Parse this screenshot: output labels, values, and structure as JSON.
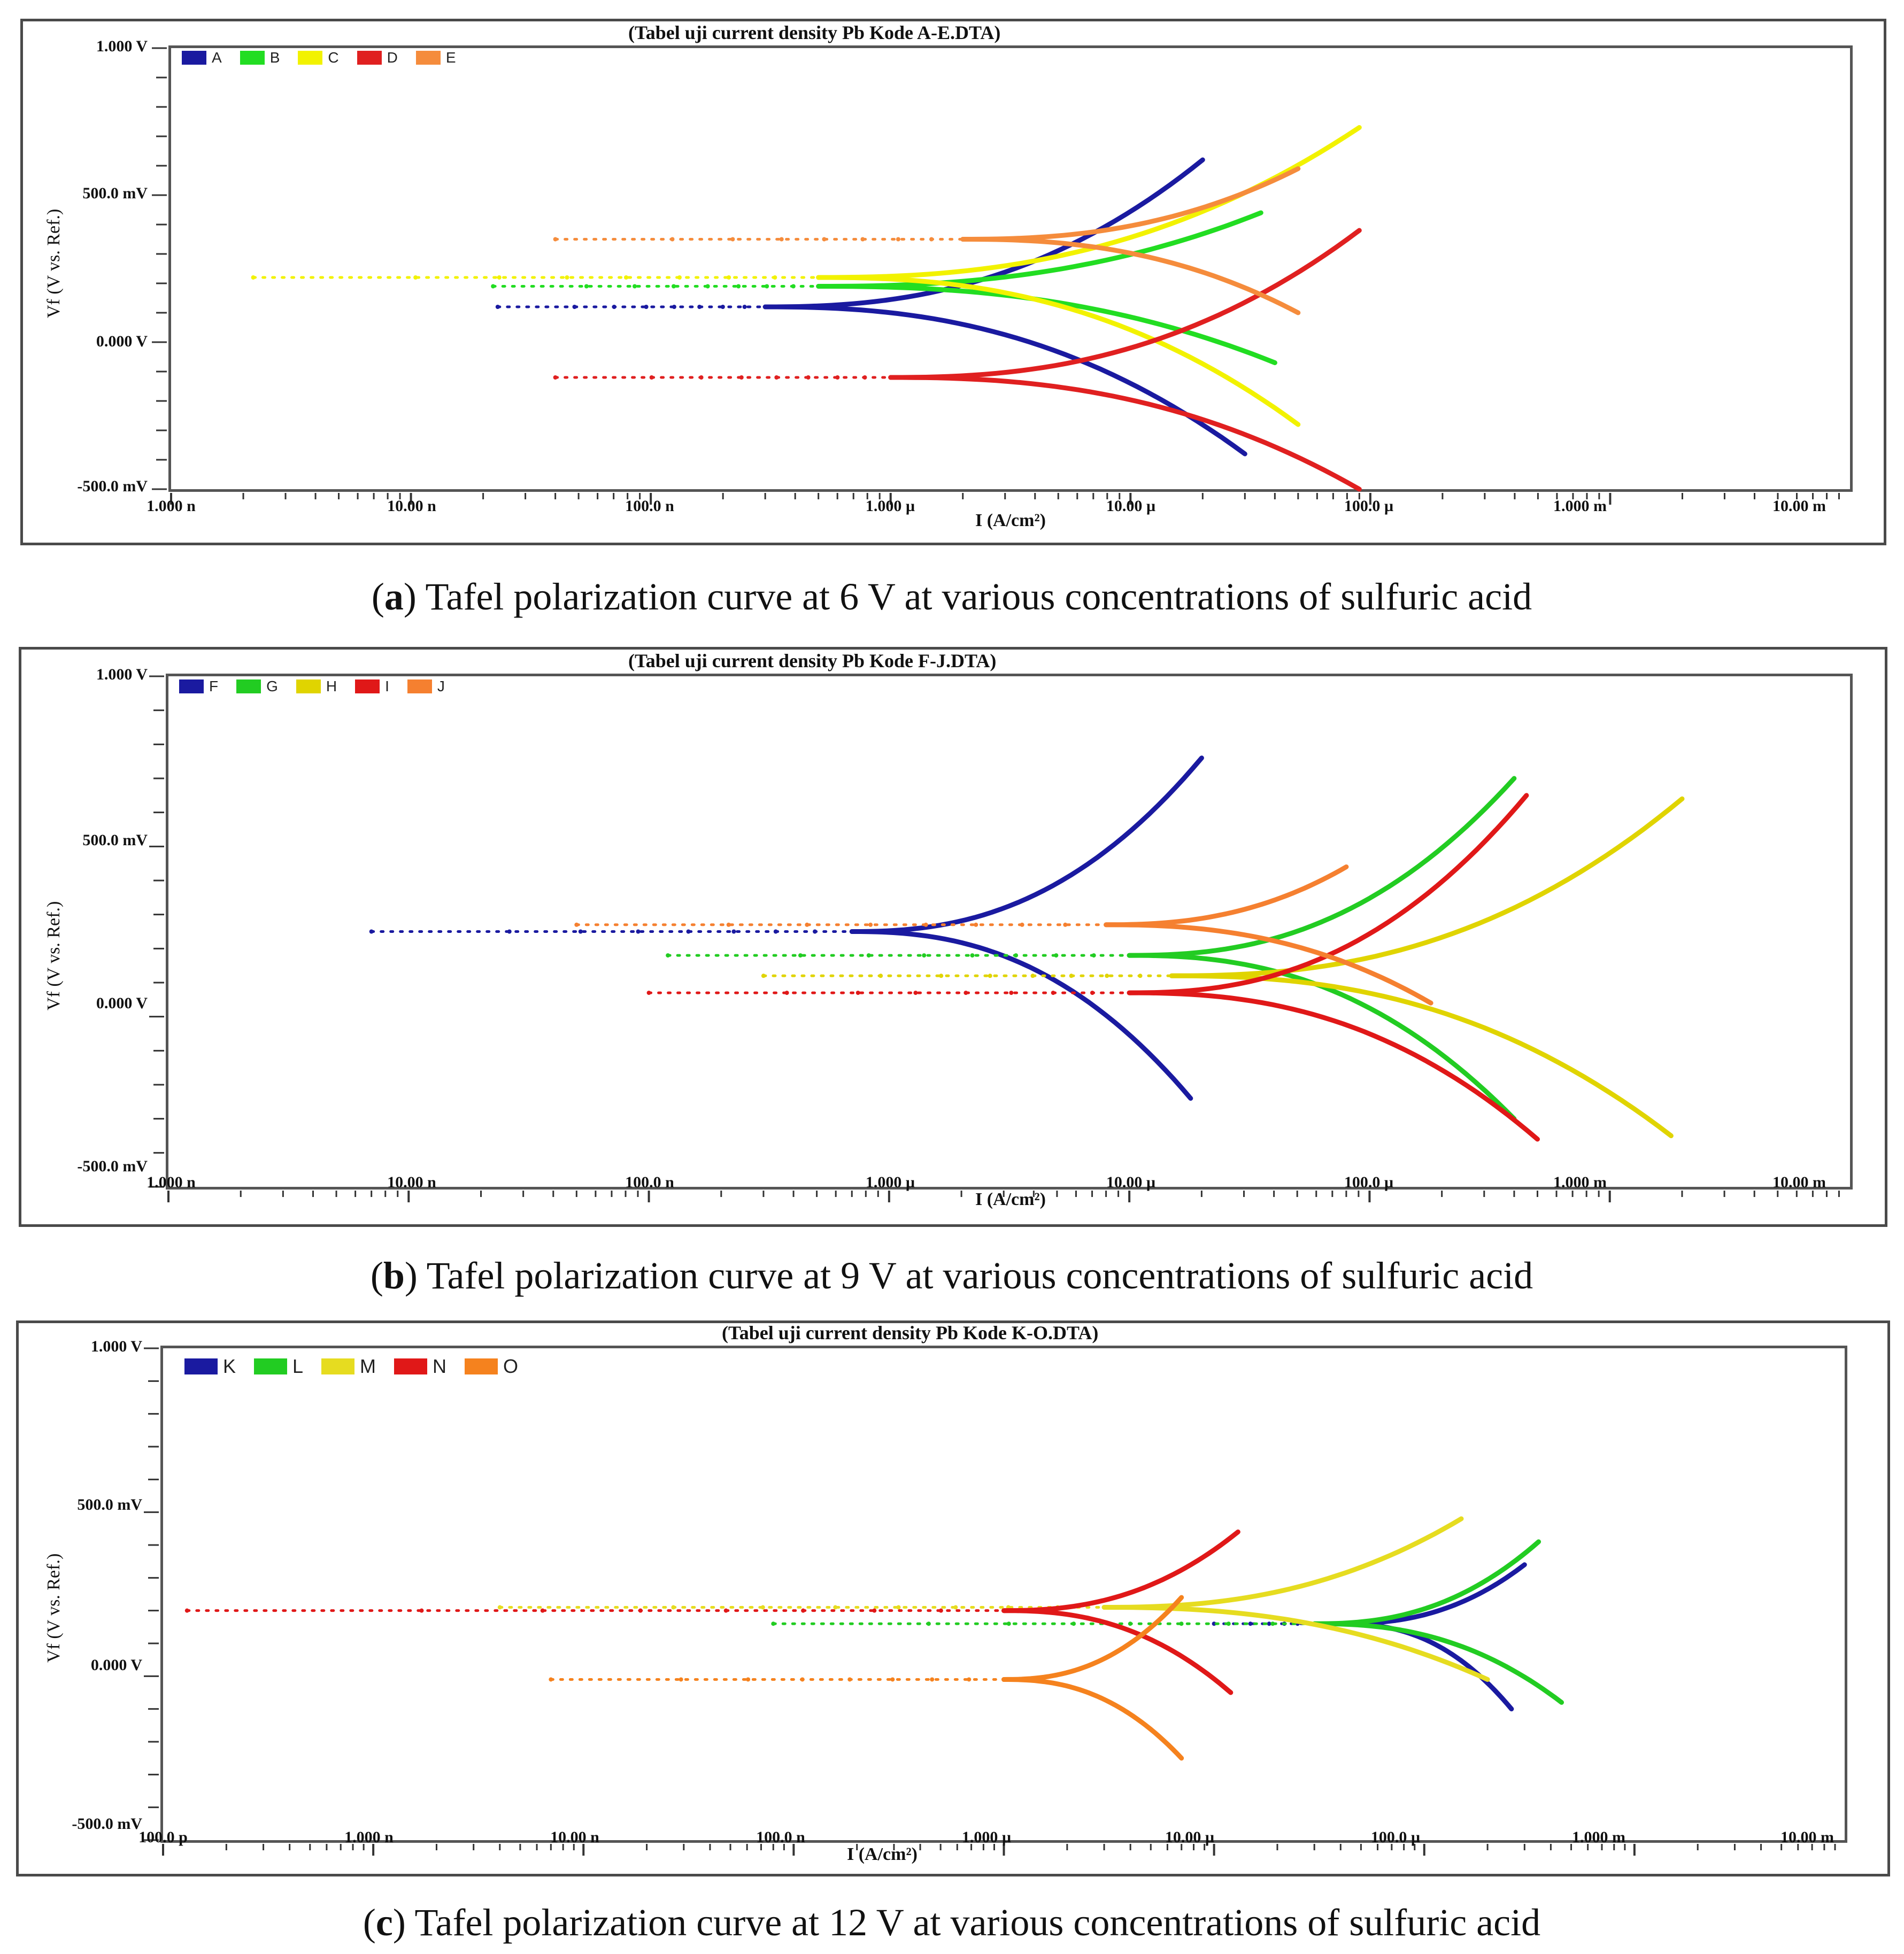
{
  "charts": [
    {
      "title": "(Tabel uji current density Pb Kode A-E.DTA)",
      "y_label": "Vf (V vs. Ref.)",
      "x_label": "I (A/cm²)",
      "y_ticks": [
        "1.000 V",
        "500.0 mV",
        "0.000 V",
        "-500.0 mV"
      ],
      "x_ticks": [
        "1.000 n",
        "10.00 n",
        "100.0 n",
        "1.000 µ",
        "10.00 µ",
        "100.0 µ",
        "1.000 m",
        "10.00 m"
      ],
      "caption_letter": "a",
      "caption_text": " Tafel polarization curve at 6 V at various concentrations of sulfuric acid",
      "legend": [
        {
          "name": "A",
          "color": "#1a1aa0"
        },
        {
          "name": "B",
          "color": "#22dd22"
        },
        {
          "name": "C",
          "color": "#f2f200"
        },
        {
          "name": "D",
          "color": "#e02020"
        },
        {
          "name": "E",
          "color": "#f58c3c"
        }
      ]
    },
    {
      "title": "(Tabel uji current density Pb Kode F-J.DTA)",
      "y_label": "Vf (V vs. Ref.)",
      "x_label": "I (A/cm²)",
      "y_ticks": [
        "1.000 V",
        "500.0 mV",
        "0.000 V",
        "-500.0 mV"
      ],
      "x_ticks": [
        "1.000 n",
        "10.00 n",
        "100.0 n",
        "1.000 µ",
        "10.00 µ",
        "100.0 µ",
        "1.000 m",
        "10.00 m"
      ],
      "caption_letter": "b",
      "caption_text": " Tafel polarization curve at 9 V at various concentrations of sulfuric acid",
      "legend": [
        {
          "name": "F",
          "color": "#1a1aa0"
        },
        {
          "name": "G",
          "color": "#22cc22"
        },
        {
          "name": "H",
          "color": "#e0d400"
        },
        {
          "name": "I",
          "color": "#e01818"
        },
        {
          "name": "J",
          "color": "#f58030"
        }
      ]
    },
    {
      "title": "(Tabel uji current density Pb Kode K-O.DTA)",
      "y_label": "Vf (V vs. Ref.)",
      "x_label": "I (A/cm²)",
      "y_ticks": [
        "1.000 V",
        "500.0 mV",
        "0.000 V",
        "-500.0 mV"
      ],
      "x_ticks": [
        "100.0 p",
        "1.000 n",
        "10.00 n",
        "100.0 n",
        "1.000 µ",
        "10.00 µ",
        "100.0 µ",
        "1.000 m",
        "10.00 m"
      ],
      "caption_letter": "c",
      "caption_text": " Tafel polarization curve at 12 V at various concentrations of sulfuric acid",
      "legend": [
        {
          "name": "K",
          "color": "#1a1aa0"
        },
        {
          "name": "L",
          "color": "#22cc22"
        },
        {
          "name": "M",
          "color": "#e6dc20"
        },
        {
          "name": "N",
          "color": "#e01818"
        },
        {
          "name": "O",
          "color": "#f5821e"
        }
      ]
    }
  ],
  "chart_data": [
    {
      "type": "line",
      "title": "(Tabel uji current density Pb Kode A-E.DTA)",
      "xlabel": "I (A/cm²)",
      "ylabel": "Vf (V vs. Ref.)",
      "xscale": "log",
      "xlim": [
        1e-09,
        0.01
      ],
      "ylim": [
        -0.5,
        1.0
      ],
      "series": [
        {
          "name": "A",
          "color": "#1a1aa0",
          "ecorr": 0.12,
          "i0": 3e-07,
          "anodic_end": [
            2e-05,
            0.62
          ],
          "cathodic_end": [
            3e-05,
            -0.38
          ],
          "min_i": 2.3e-08
        },
        {
          "name": "B",
          "color": "#22dd22",
          "ecorr": 0.19,
          "i0": 5e-07,
          "anodic_end": [
            3.5e-05,
            0.44
          ],
          "cathodic_end": [
            4e-05,
            -0.07
          ],
          "min_i": 2.2e-08
        },
        {
          "name": "C",
          "color": "#f2f200",
          "ecorr": 0.22,
          "i0": 5e-07,
          "anodic_end": [
            9e-05,
            0.73
          ],
          "cathodic_end": [
            5e-05,
            -0.28
          ],
          "min_i": 2.2e-09
        },
        {
          "name": "D",
          "color": "#e02020",
          "ecorr": -0.12,
          "i0": 1e-06,
          "anodic_end": [
            9e-05,
            0.38
          ],
          "cathodic_end": [
            9e-05,
            -0.5
          ],
          "min_i": 4e-08
        },
        {
          "name": "E",
          "color": "#f58c3c",
          "ecorr": 0.35,
          "i0": 2e-06,
          "anodic_end": [
            5e-05,
            0.59
          ],
          "cathodic_end": [
            5e-05,
            0.1
          ],
          "min_i": 4e-08
        }
      ]
    },
    {
      "type": "line",
      "title": "(Tabel uji current density Pb Kode F-J.DTA)",
      "xlabel": "I (A/cm²)",
      "ylabel": "Vf (V vs. Ref.)",
      "xscale": "log",
      "xlim": [
        1e-09,
        0.01
      ],
      "ylim": [
        -0.5,
        1.0
      ],
      "series": [
        {
          "name": "F",
          "color": "#1a1aa0",
          "ecorr": 0.25,
          "i0": 7e-07,
          "anodic_end": [
            2e-05,
            0.76
          ],
          "cathodic_end": [
            1.8e-05,
            -0.24
          ],
          "min_i": 7e-09
        },
        {
          "name": "G",
          "color": "#22cc22",
          "ecorr": 0.18,
          "i0": 1e-05,
          "anodic_end": [
            0.0004,
            0.7
          ],
          "cathodic_end": [
            0.0004,
            -0.3
          ],
          "min_i": 1.2e-07
        },
        {
          "name": "H",
          "color": "#e0d400",
          "ecorr": 0.12,
          "i0": 1.5e-05,
          "anodic_end": [
            0.002,
            0.64
          ],
          "cathodic_end": [
            0.0018,
            -0.35
          ],
          "min_i": 3e-07
        },
        {
          "name": "I",
          "color": "#e01818",
          "ecorr": 0.07,
          "i0": 1e-05,
          "anodic_end": [
            0.00045,
            0.65
          ],
          "cathodic_end": [
            0.0005,
            -0.36
          ],
          "min_i": 1e-07
        },
        {
          "name": "J",
          "color": "#f58030",
          "ecorr": 0.27,
          "i0": 8e-06,
          "anodic_end": [
            8e-05,
            0.44
          ],
          "cathodic_end": [
            0.00018,
            0.04
          ],
          "min_i": 5e-08
        }
      ]
    },
    {
      "type": "line",
      "title": "(Tabel uji current density Pb Kode K-O.DTA)",
      "xlabel": "I (A/cm²)",
      "ylabel": "Vf (V vs. Ref.)",
      "xscale": "log",
      "xlim": [
        1e-10,
        0.01
      ],
      "ylim": [
        -0.5,
        1.0
      ],
      "series": [
        {
          "name": "K",
          "color": "#1a1aa0",
          "ecorr": 0.16,
          "i0": 4e-05,
          "anodic_end": [
            0.0003,
            0.34
          ],
          "cathodic_end": [
            0.00026,
            -0.1
          ],
          "min_i": 1e-05
        },
        {
          "name": "L",
          "color": "#22cc22",
          "ecorr": 0.16,
          "i0": 3e-05,
          "anodic_end": [
            0.00035,
            0.41
          ],
          "cathodic_end": [
            0.00045,
            -0.08
          ],
          "min_i": 8e-08
        },
        {
          "name": "M",
          "color": "#e6dc20",
          "ecorr": 0.21,
          "i0": 3e-06,
          "anodic_end": [
            0.00015,
            0.48
          ],
          "cathodic_end": [
            0.0002,
            -0.01
          ],
          "min_i": 4e-09
        },
        {
          "name": "N",
          "color": "#e01818",
          "ecorr": 0.2,
          "i0": 1e-06,
          "anodic_end": [
            1.3e-05,
            0.44
          ],
          "cathodic_end": [
            1.2e-05,
            -0.05
          ],
          "min_i": 1.3e-10
        },
        {
          "name": "O",
          "color": "#f5821e",
          "ecorr": -0.01,
          "i0": 1e-06,
          "anodic_end": [
            7e-06,
            0.24
          ],
          "cathodic_end": [
            7e-06,
            -0.25
          ],
          "min_i": 7e-09
        }
      ]
    }
  ]
}
